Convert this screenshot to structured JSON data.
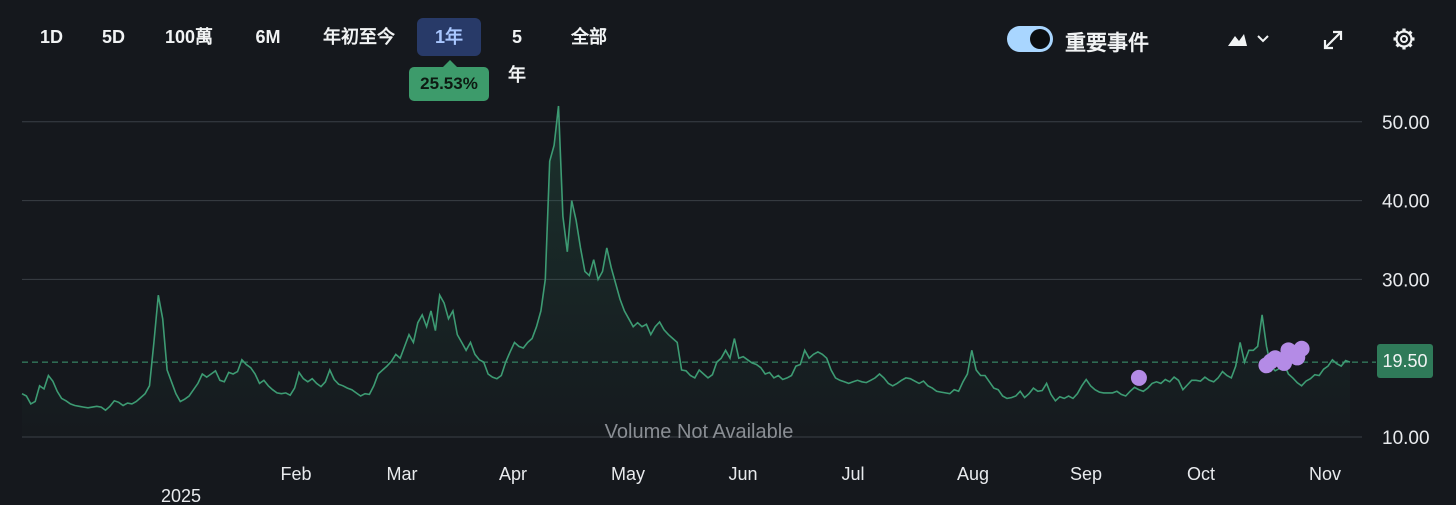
{
  "toolbar": {
    "ranges": [
      {
        "label": "1D",
        "active": false
      },
      {
        "label": "5D",
        "active": false
      },
      {
        "label": "100萬",
        "active": false
      },
      {
        "label": "6M",
        "active": false
      },
      {
        "label": "年初至今",
        "active": false
      },
      {
        "label": "1年",
        "active": true
      },
      {
        "label": "5年",
        "active": false
      },
      {
        "label": "全部",
        "active": false
      }
    ],
    "return_badge": "25.53%",
    "events_toggle": {
      "label": "重要事件",
      "on": true
    },
    "icons": [
      "area-chart-icon",
      "chevron-down-icon",
      "expand-icon",
      "gear-icon"
    ]
  },
  "chart_data": {
    "type": "area",
    "y_ticks": [
      "50.00",
      "40.00",
      "30.00",
      "10.00"
    ],
    "ylim": [
      10,
      50
    ],
    "x_labels": [
      "2025",
      "Feb",
      "Mar",
      "Apr",
      "May",
      "Jun",
      "Jul",
      "Aug",
      "Sep",
      "Oct",
      "Nov"
    ],
    "current_value": "19.50",
    "current_value_num": 19.5,
    "volume_note": "Volume Not Available",
    "grid": true,
    "colors": {
      "line": "#3d9b73",
      "event": "#b48be6",
      "badge": "#2f7a59"
    },
    "series": [
      {
        "values": [
          15.5,
          15.2,
          14.2,
          14.5,
          16.5,
          16.1,
          17.8,
          17.1,
          15.8,
          14.9,
          14.6,
          14.2,
          14.0,
          13.9,
          13.8,
          13.7,
          13.8,
          13.9,
          13.8,
          13.4,
          13.9,
          14.6,
          14.4,
          14.0,
          14.3,
          14.2,
          14.5,
          15.0,
          15.5,
          16.5,
          22.0,
          28.0,
          25.0,
          18.5,
          17.0,
          15.5,
          14.5,
          14.8,
          15.2,
          16.0,
          16.8,
          18.0,
          17.6,
          18.0,
          18.4,
          17.2,
          17.0,
          18.2,
          18.0,
          18.3,
          19.8,
          19.2,
          18.8,
          18.0,
          16.8,
          17.2,
          16.5,
          16.0,
          15.6,
          15.5,
          15.6,
          15.3,
          16.2,
          18.2,
          17.4,
          17.0,
          17.4,
          16.8,
          16.4,
          17.0,
          18.5,
          17.3,
          16.7,
          16.5,
          16.2,
          16.0,
          15.6,
          15.2,
          15.5,
          15.4,
          16.5,
          18.0,
          18.5,
          19.0,
          19.6,
          20.5,
          20.0,
          21.5,
          23.0,
          22.0,
          24.5,
          25.5,
          24.0,
          26.0,
          23.5,
          28.0,
          27.0,
          25.0,
          26.0,
          23.0,
          22.0,
          21.0,
          22.0,
          20.5,
          19.8,
          19.5,
          18.0,
          17.6,
          17.4,
          17.8,
          19.5,
          20.8,
          22.0,
          21.5,
          21.3,
          22.0,
          22.5,
          24.0,
          26.0,
          30.0,
          45.0,
          47.0,
          52.0,
          38.0,
          33.5,
          40.0,
          37.5,
          34.0,
          31.0,
          30.5,
          32.5,
          30.0,
          31.0,
          34.0,
          31.5,
          29.5,
          27.5,
          26.0,
          25.0,
          24.0,
          24.5,
          24.0,
          24.3,
          23.0,
          24.0,
          24.6,
          23.6,
          23.0,
          22.5,
          22.0,
          18.5,
          18.4,
          17.8,
          17.5,
          18.5,
          18.0,
          17.5,
          17.9,
          19.5,
          20.0,
          21.0,
          20.0,
          22.5,
          20.0,
          20.2,
          19.8,
          19.4,
          19.2,
          18.8,
          18.0,
          18.2,
          17.5,
          17.8,
          17.3,
          17.5,
          17.8,
          19.0,
          19.2,
          21.0,
          20.0,
          20.5,
          20.8,
          20.5,
          20.0,
          18.5,
          17.5,
          17.2,
          17.0,
          16.8,
          17.0,
          17.2,
          17.0,
          16.9,
          17.2,
          17.5,
          18.0,
          17.5,
          16.8,
          16.5,
          16.8,
          17.2,
          17.5,
          17.4,
          17.1,
          16.8,
          17.1,
          16.5,
          16.2,
          15.8,
          15.7,
          15.6,
          15.5,
          16.0,
          15.8,
          17.0,
          18.0,
          21.0,
          18.5,
          17.8,
          17.8,
          17.0,
          16.2,
          16.0,
          15.2,
          14.9,
          15.0,
          15.2,
          15.8,
          15.0,
          15.5,
          16.2,
          15.8,
          15.9,
          16.8,
          15.4,
          14.6,
          15.1,
          14.9,
          15.2,
          14.9,
          15.5,
          16.5,
          17.3,
          16.5,
          16.0,
          15.7,
          15.6,
          15.6,
          15.6,
          15.8,
          15.4,
          15.2,
          15.8,
          16.3,
          16.0,
          15.8,
          16.2,
          16.8,
          17.0,
          16.8,
          17.3,
          17.0,
          17.6,
          17.2,
          16.0,
          16.6,
          17.2,
          17.2,
          17.1,
          17.6,
          17.2,
          17.0,
          17.5,
          18.3,
          17.8,
          17.5,
          19.0,
          22.0,
          19.5,
          21.0,
          21.0,
          21.5,
          25.5,
          21.5,
          19.0,
          18.4,
          18.7,
          19.3,
          18.0,
          17.5,
          16.9,
          16.5,
          17.1,
          17.4,
          17.9,
          17.8,
          18.6,
          19.0,
          19.8,
          19.3,
          19.0,
          19.7,
          19.5
        ]
      }
    ],
    "events": [
      {
        "index": 254,
        "value": 17.5
      },
      {
        "index": 283,
        "value": 19.1
      },
      {
        "index": 284,
        "value": 19.6
      },
      {
        "index": 285,
        "value": 20.0
      },
      {
        "index": 287,
        "value": 19.4
      },
      {
        "index": 288,
        "value": 21.0
      },
      {
        "index": 290,
        "value": 20.1
      },
      {
        "index": 291,
        "value": 21.2
      }
    ]
  }
}
